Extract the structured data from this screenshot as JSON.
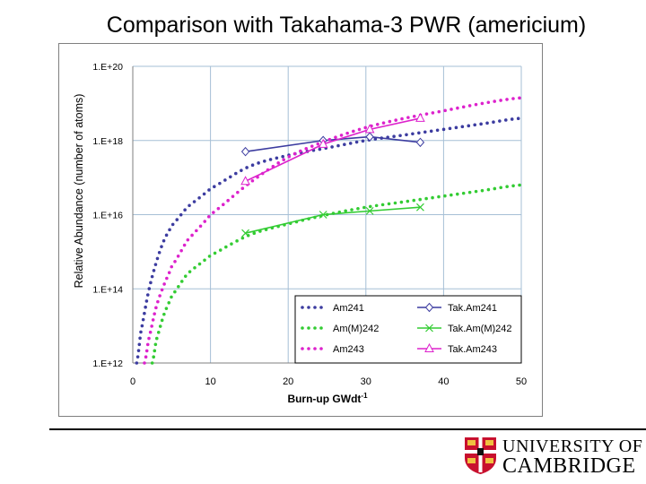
{
  "slide": {
    "title": "Comparison with Takahama-3 PWR (americium)",
    "university_line1": "UNIVERSITY OF",
    "university_line2": "CAMBRIDGE"
  },
  "colors": {
    "am241": "#3c3ca0",
    "am242": "#33cc33",
    "am243": "#dd22cc",
    "grid": "#a6bfd6",
    "axis": "#7f7f7f"
  },
  "chart_data": {
    "type": "line",
    "title": "",
    "xlabel": "Burn-up GWdt",
    "xlabel_superscript": "-1",
    "ylabel": "Relative Abundance  (number of atoms)",
    "xlim": [
      0,
      50
    ],
    "ylim_log10": [
      12,
      20
    ],
    "y_scale": "log",
    "grid": true,
    "legend_position": "bottom-right",
    "x_ticks": [
      "0",
      "10",
      "20",
      "30",
      "40",
      "50"
    ],
    "y_ticks": [
      "1.E+12",
      "1.E+14",
      "1.E+16",
      "1.E+18",
      "1.E+20"
    ],
    "series": [
      {
        "name": "Am241",
        "style": "dotted",
        "color_key": "am241",
        "x": [
          0.5,
          1,
          2,
          3,
          4,
          5,
          7,
          10,
          15,
          20,
          25,
          30,
          35,
          40,
          45,
          50
        ],
        "log10_y": [
          12.0,
          12.8,
          13.9,
          14.7,
          15.3,
          15.7,
          16.2,
          16.7,
          17.3,
          17.6,
          17.8,
          18.0,
          18.15,
          18.3,
          18.45,
          18.6
        ]
      },
      {
        "name": "Tak.Am241",
        "style": "line-diamond",
        "color_key": "am241",
        "x": [
          14.5,
          24.5,
          30.5,
          37
        ],
        "log10_y": [
          17.7,
          18.0,
          18.1,
          17.95
        ]
      },
      {
        "name": "Am(M)242",
        "style": "dotted",
        "color_key": "am242",
        "x": [
          2.5,
          3,
          4,
          5,
          7,
          10,
          15,
          20,
          25,
          30,
          35,
          40,
          45,
          50
        ],
        "log10_y": [
          12.0,
          12.6,
          13.3,
          13.8,
          14.4,
          14.9,
          15.45,
          15.75,
          16.0,
          16.2,
          16.35,
          16.5,
          16.65,
          16.8
        ]
      },
      {
        "name": "Tak.Am(M)242",
        "style": "line-cross",
        "color_key": "am242",
        "x": [
          14.5,
          24.5,
          30.5,
          37
        ],
        "log10_y": [
          15.5,
          16.0,
          16.1,
          16.2
        ]
      },
      {
        "name": "Am243",
        "style": "dotted",
        "color_key": "am243",
        "x": [
          1.5,
          2,
          3,
          4,
          5,
          7,
          10,
          15,
          20,
          25,
          30,
          35,
          40,
          45,
          50
        ],
        "log10_y": [
          12.0,
          12.6,
          13.5,
          14.1,
          14.6,
          15.3,
          16.0,
          16.85,
          17.55,
          18.0,
          18.35,
          18.6,
          18.8,
          19.0,
          19.15
        ]
      },
      {
        "name": "Tak.Am243",
        "style": "line-triangle",
        "color_key": "am243",
        "x": [
          14.5,
          24.5,
          30.5,
          37
        ],
        "log10_y": [
          16.9,
          17.9,
          18.3,
          18.6
        ]
      }
    ]
  }
}
